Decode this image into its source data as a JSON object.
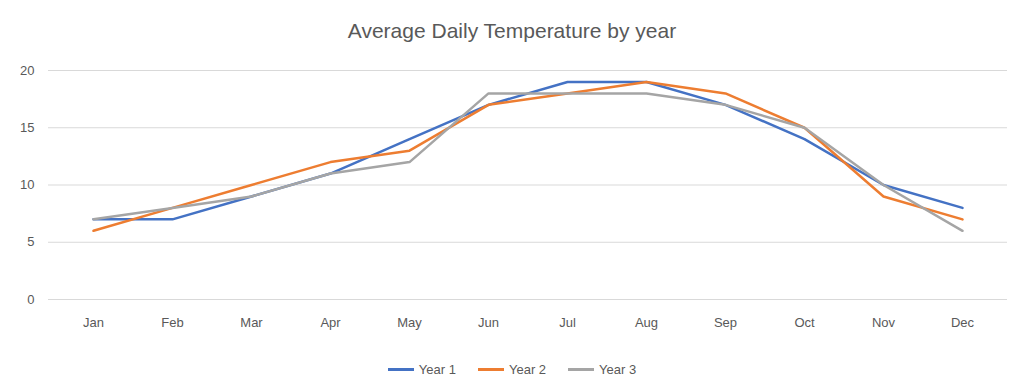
{
  "chart_data": {
    "type": "line",
    "title": "Average Daily Temperature by year",
    "categories": [
      "Jan",
      "Feb",
      "Mar",
      "Apr",
      "May",
      "Jun",
      "Jul",
      "Aug",
      "Sep",
      "Oct",
      "Nov",
      "Dec"
    ],
    "series": [
      {
        "name": "Year 1",
        "color": "#4472c4",
        "values": [
          7,
          7,
          9,
          11,
          14,
          17,
          19,
          19,
          17,
          14,
          10,
          8
        ]
      },
      {
        "name": "Year 2",
        "color": "#ed7d31",
        "values": [
          6,
          8,
          10,
          12,
          13,
          17,
          18,
          19,
          18,
          15,
          9,
          7
        ]
      },
      {
        "name": "Year 3",
        "color": "#a5a5a5",
        "values": [
          7,
          8,
          9,
          11,
          12,
          18,
          18,
          18,
          17,
          15,
          10,
          6
        ]
      }
    ],
    "ylim": [
      0,
      20
    ],
    "yticks": [
      0,
      5,
      10,
      15,
      20
    ],
    "grid": true,
    "legend": "bottom"
  }
}
